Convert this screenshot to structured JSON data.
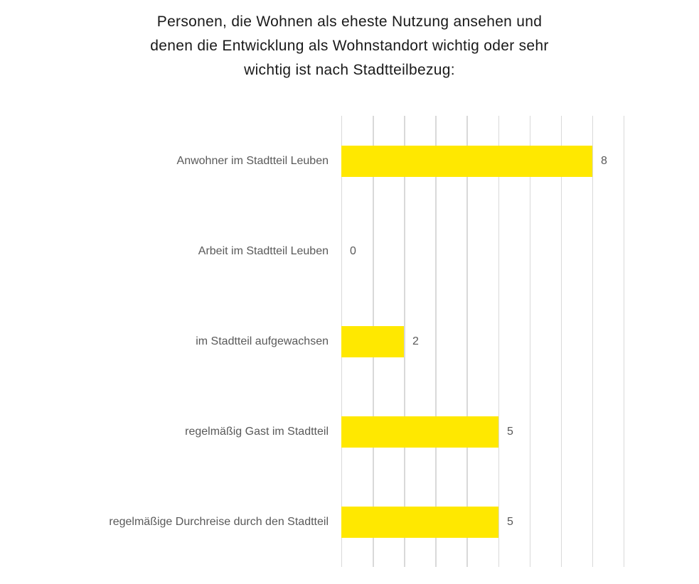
{
  "title": "Personen, die Wohnen als eheste Nutzung ansehen und denen die Entwicklung als Wohnstandort wichtig oder sehr wichtig ist nach Stadtteilbezug:",
  "title_lines": [
    "Personen, die Wohnen als eheste Nutzung ansehen und",
    "denen die Entwicklung als Wohnstandort wichtig oder sehr",
    "wichtig ist nach Stadtteilbezug:"
  ],
  "chart_data": {
    "type": "bar",
    "orientation": "horizontal",
    "title": "Personen, die Wohnen als eheste Nutzung ansehen und denen die Entwicklung als Wohnstandort wichtig oder sehr wichtig ist nach Stadtteilbezug:",
    "categories": [
      "Anwohner im Stadtteil Leuben",
      "Arbeit im Stadtteil Leuben",
      "im Stadtteil aufgewachsen",
      "regelmäßig Gast im Stadtteil",
      "regelmäßige Durchreise durch den Stadtteil"
    ],
    "values": [
      8,
      0,
      2,
      5,
      5
    ],
    "value_labels": [
      "8",
      "0",
      "2",
      "5",
      "5"
    ],
    "xlim": [
      0,
      9
    ],
    "grid_step": 1,
    "grid": "vertical-only",
    "legend": "none",
    "axis_tick_labels_shown": false,
    "colors": {
      "bar": "#FFE800",
      "grid": "#D9D9D9",
      "label": "#595959",
      "title": "#1A1A1A",
      "background": "#FFFFFF"
    }
  }
}
